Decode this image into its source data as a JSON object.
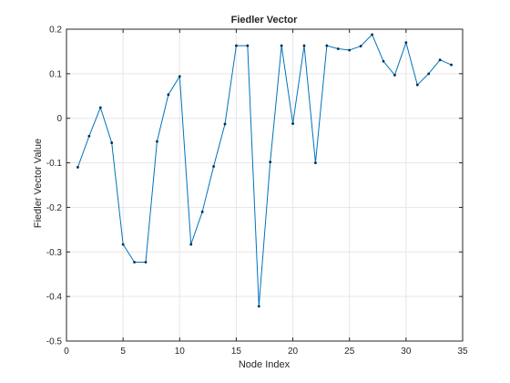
{
  "chart_data": {
    "type": "line",
    "title": "Fiedler Vector",
    "xlabel": "Node Index",
    "ylabel": "Fiedler Vector Value",
    "xlim": [
      0,
      35
    ],
    "ylim": [
      -0.5,
      0.2
    ],
    "xticks": [
      0,
      5,
      10,
      15,
      20,
      25,
      30,
      35
    ],
    "yticks": [
      -0.5,
      -0.4,
      -0.3,
      -0.2,
      -0.1,
      0,
      0.1,
      0.2
    ],
    "xtick_labels": [
      "0",
      "5",
      "10",
      "15",
      "20",
      "25",
      "30",
      "35"
    ],
    "ytick_labels": [
      "-0.5",
      "-0.4",
      "-0.3",
      "-0.2",
      "-0.1",
      "0",
      "0.1",
      "0.2"
    ],
    "grid": true,
    "line_color": "#0072bd",
    "x": [
      1,
      2,
      3,
      4,
      5,
      6,
      7,
      8,
      9,
      10,
      11,
      12,
      13,
      14,
      15,
      16,
      17,
      18,
      19,
      20,
      21,
      22,
      23,
      24,
      25,
      26,
      27,
      28,
      29,
      30,
      31,
      32,
      33,
      34
    ],
    "series": [
      {
        "values": [
          -0.11,
          -0.04,
          0.024,
          -0.055,
          -0.283,
          -0.323,
          -0.323,
          -0.052,
          0.053,
          0.094,
          -0.283,
          -0.21,
          -0.108,
          -0.013,
          0.163,
          0.163,
          -0.422,
          -0.098,
          0.163,
          -0.012,
          0.163,
          -0.1,
          0.163,
          0.156,
          0.153,
          0.162,
          0.188,
          0.128,
          0.097,
          0.17,
          0.075,
          0.1,
          0.131,
          0.12
        ]
      }
    ]
  }
}
